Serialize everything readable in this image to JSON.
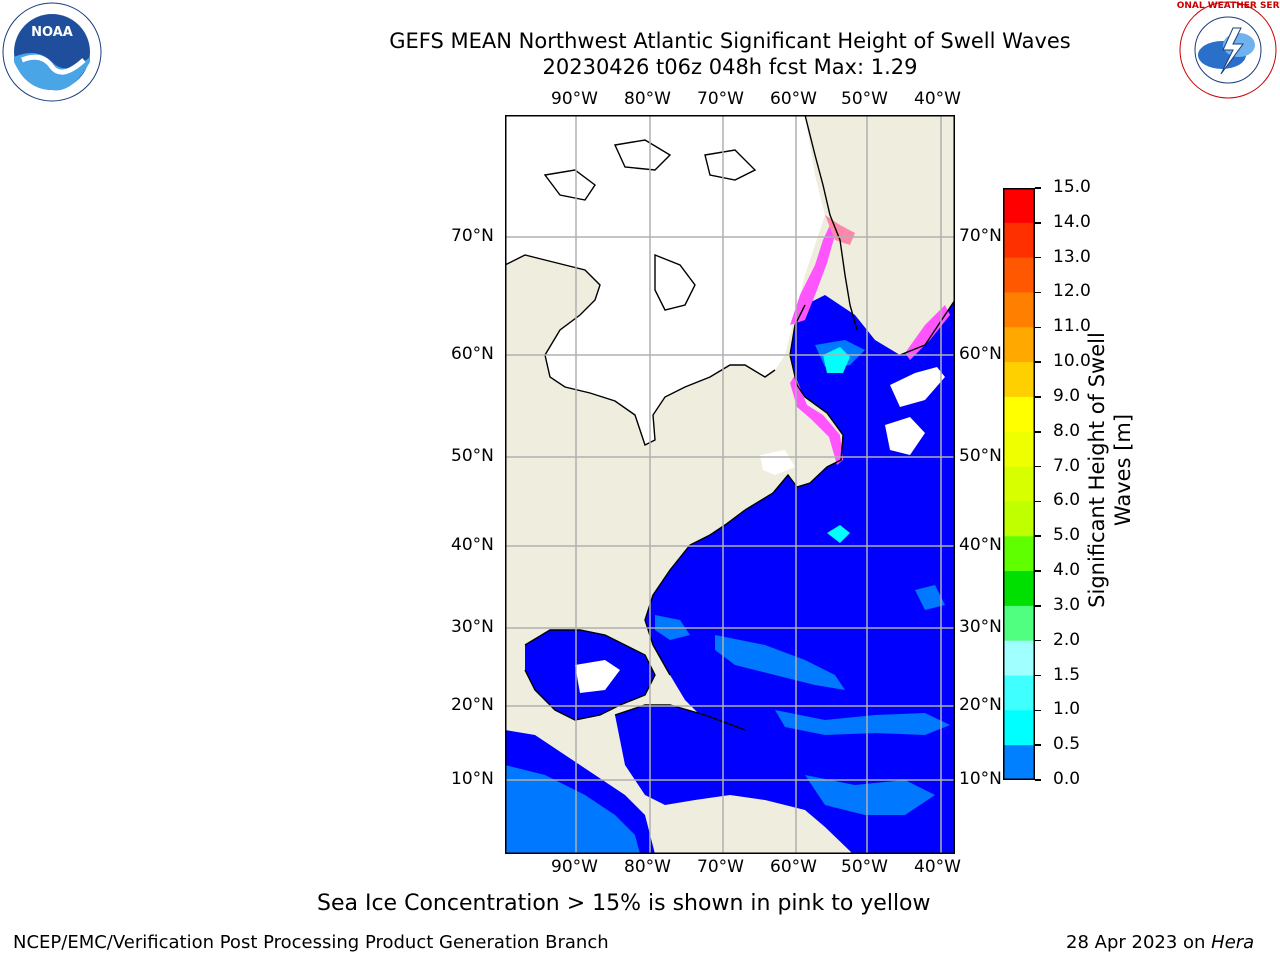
{
  "header": {
    "title_line1": "GEFS MEAN Northwest Atlantic Significant Height of Swell Waves",
    "title_line2": "20230426 t06z 048h fcst   Max: 1.29"
  },
  "logos": {
    "noaa_text": "NOAA",
    "nws_text": "NATIONAL WEATHER SERVICE"
  },
  "map": {
    "lon_labels": [
      "90°W",
      "80°W",
      "70°W",
      "60°W",
      "50°W",
      "40°W"
    ],
    "lat_labels": [
      "70°N",
      "60°N",
      "50°N",
      "40°N",
      "30°N",
      "20°N",
      "10°N"
    ],
    "colors": {
      "land": "#efedde",
      "ice_free_blank": "#ffffff",
      "ocean_low": "#0000ff",
      "ocean_mid": "#0078ff",
      "ocean_high": "#00ffff",
      "ice": "#ff55ff",
      "grid": "#b0b0b0"
    }
  },
  "colorbar": {
    "title": "Significant Height of Swell Waves [m]",
    "title_line1": "Significant Height of Swell",
    "title_line2": "Waves [m]",
    "labels": [
      "15.0",
      "14.0",
      "13.0",
      "12.0",
      "11.0",
      "10.0",
      "9.0",
      "8.0",
      "7.0",
      "6.0",
      "5.0",
      "4.0",
      "3.0",
      "2.0",
      "1.5",
      "1.0",
      "0.5",
      "0.0"
    ],
    "colors": [
      "#ff0000",
      "#ff3000",
      "#ff5800",
      "#ff8000",
      "#ffa800",
      "#ffd000",
      "#ffff00",
      "#f0ff00",
      "#d8ff00",
      "#c0ff00",
      "#60ff00",
      "#00e000",
      "#50ff80",
      "#a0ffff",
      "#40ffff",
      "#00ffff",
      "#0080ff",
      "#0000ff"
    ]
  },
  "footer": {
    "note": "Sea Ice Concentration > 15% is shown in pink to yellow",
    "left": "NCEP/EMC/Verification Post Processing Product Generation Branch",
    "right_prefix": "28 Apr 2023 on ",
    "right_host": "Hera"
  }
}
